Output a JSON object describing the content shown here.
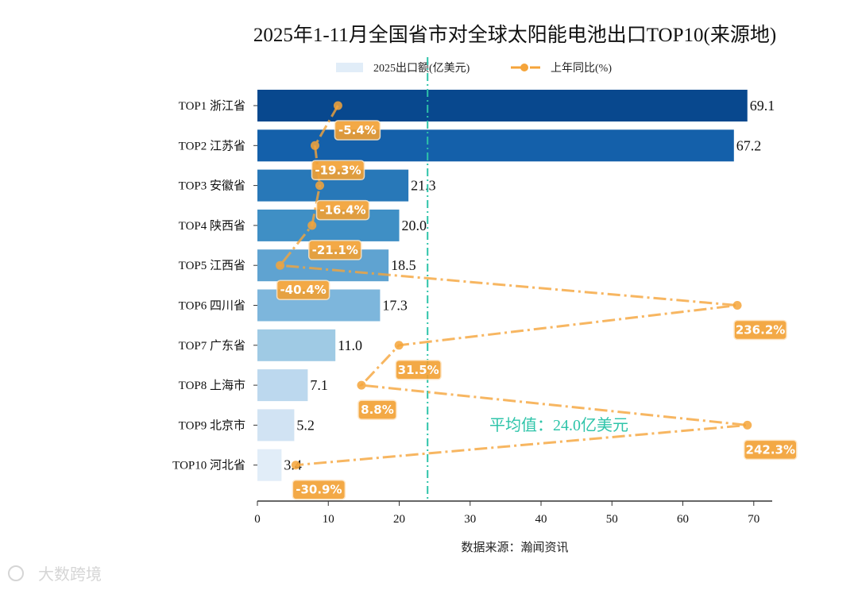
{
  "chart_data": {
    "type": "bar",
    "orientation": "horizontal",
    "title": "2025年1-11月全国省市对全球太阳能电池出口TOP10(来源地)",
    "xlabel": "数据来源：瀚闻资讯",
    "ylabel": "",
    "xlim": [
      0,
      72.6
    ],
    "xticks": [
      0,
      10,
      20,
      30,
      40,
      50,
      60,
      70
    ],
    "categories": [
      "TOP1 浙江省",
      "TOP2 江苏省",
      "TOP3 安徽省",
      "TOP4 陕西省",
      "TOP5 江西省",
      "TOP6 四川省",
      "TOP7 广东省",
      "TOP8 上海市",
      "TOP9 北京市",
      "TOP10 河北省"
    ],
    "series": [
      {
        "name": "2025出口额(亿美元)",
        "type": "bar",
        "values": [
          69.1,
          67.2,
          21.3,
          20.0,
          18.5,
          17.3,
          11.0,
          7.1,
          5.2,
          3.4
        ],
        "value_labels": [
          "69.1",
          "67.2",
          "21.3",
          "20.0",
          "18.5",
          "17.3",
          "11.0",
          "7.1",
          "5.2",
          "3.4"
        ]
      },
      {
        "name": "上年同比(%)",
        "type": "line",
        "values": [
          -5.4,
          -19.3,
          -16.4,
          -21.1,
          -40.4,
          236.2,
          31.5,
          8.8,
          242.3,
          -30.9
        ],
        "value_labels": [
          "-5.4%",
          "-19.3%",
          "-16.4%",
          "-21.1%",
          "-40.4%",
          "236.2%",
          "31.5%",
          "8.8%",
          "242.3%",
          "-30.9%"
        ]
      }
    ],
    "average_line": {
      "value": 24.0,
      "label": "平均值：24.0亿美元"
    },
    "legend": {
      "placement": "top-center",
      "entries": [
        "2025出口额(亿美元)",
        "上年同比(%)"
      ]
    },
    "grid": false,
    "colors": {
      "bars": [
        "#08488e",
        "#1460aa",
        "#2878b8",
        "#3f8fc5",
        "#5fa3d1",
        "#7db6dc",
        "#9fcae4",
        "#bcd8ee",
        "#d1e3f3",
        "#e1edf8"
      ],
      "line": "#f5a43a",
      "average": "#2ec4a9"
    }
  },
  "watermark": "大数跨境"
}
